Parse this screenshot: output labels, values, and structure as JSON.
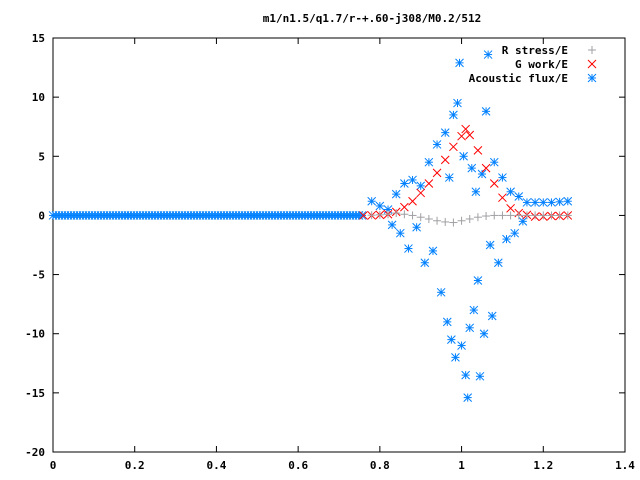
{
  "chart_data": {
    "type": "scatter",
    "title": "m1/n1.5/q1.7/r-+.60-j308/M0.2/512",
    "xlabel": "",
    "ylabel": "",
    "xlim": [
      0,
      1.4
    ],
    "ylim": [
      -20,
      15
    ],
    "x_ticks": [
      "0",
      "0.2",
      "0.4",
      "0.6",
      "0.8",
      "1",
      "1.2",
      "1.4"
    ],
    "y_ticks": [
      "15",
      "10",
      "5",
      "0",
      "-5",
      "-10",
      "-15",
      "-20"
    ],
    "grid": false,
    "legend_position": "top-right",
    "series": [
      {
        "name": "R stress/E",
        "marker": "+",
        "color": "#a0a0a4",
        "points": [
          [
            0.78,
            0.02
          ],
          [
            0.8,
            0.05
          ],
          [
            0.82,
            0.1
          ],
          [
            0.84,
            0.2
          ],
          [
            0.86,
            0.1
          ],
          [
            0.88,
            0.0
          ],
          [
            0.9,
            -0.15
          ],
          [
            0.92,
            -0.3
          ],
          [
            0.94,
            -0.45
          ],
          [
            0.96,
            -0.55
          ],
          [
            0.98,
            -0.6
          ],
          [
            1.0,
            -0.45
          ],
          [
            1.02,
            -0.3
          ],
          [
            1.04,
            -0.15
          ],
          [
            1.06,
            -0.05
          ],
          [
            1.08,
            0.0
          ],
          [
            1.1,
            0.0
          ],
          [
            1.12,
            0.0
          ],
          [
            1.14,
            0.0
          ],
          [
            1.16,
            0.0
          ],
          [
            1.18,
            0.0
          ],
          [
            1.2,
            0.0
          ],
          [
            1.22,
            0.0
          ],
          [
            1.24,
            0.0
          ],
          [
            1.26,
            0.0
          ]
        ]
      },
      {
        "name": "G work/E",
        "marker": "x",
        "color": "#ff0000",
        "points": [
          [
            0.76,
            0.0
          ],
          [
            0.78,
            0.0
          ],
          [
            0.8,
            0.05
          ],
          [
            0.82,
            0.1
          ],
          [
            0.84,
            0.3
          ],
          [
            0.86,
            0.7
          ],
          [
            0.88,
            1.2
          ],
          [
            0.9,
            1.9
          ],
          [
            0.92,
            2.7
          ],
          [
            0.94,
            3.6
          ],
          [
            0.96,
            4.7
          ],
          [
            0.98,
            5.8
          ],
          [
            1.0,
            6.7
          ],
          [
            1.01,
            7.3
          ],
          [
            1.02,
            6.8
          ],
          [
            1.04,
            5.5
          ],
          [
            1.06,
            4.0
          ],
          [
            1.08,
            2.7
          ],
          [
            1.1,
            1.5
          ],
          [
            1.12,
            0.6
          ],
          [
            1.14,
            0.2
          ],
          [
            1.16,
            0.05
          ],
          [
            1.18,
            -0.1
          ],
          [
            1.2,
            -0.1
          ],
          [
            1.22,
            -0.05
          ],
          [
            1.24,
            -0.05
          ],
          [
            1.26,
            0.0
          ]
        ]
      },
      {
        "name": "Acoustic flux/E",
        "marker": "*",
        "color": "#0080ff",
        "points": [
          [
            0.78,
            1.2
          ],
          [
            0.8,
            0.8
          ],
          [
            0.82,
            0.5
          ],
          [
            0.83,
            -0.8
          ],
          [
            0.84,
            1.8
          ],
          [
            0.85,
            -1.5
          ],
          [
            0.86,
            2.7
          ],
          [
            0.87,
            -2.8
          ],
          [
            0.88,
            3.0
          ],
          [
            0.89,
            -1.0
          ],
          [
            0.9,
            2.5
          ],
          [
            0.91,
            -4.0
          ],
          [
            0.92,
            4.5
          ],
          [
            0.93,
            -3.0
          ],
          [
            0.94,
            6.0
          ],
          [
            0.95,
            -6.5
          ],
          [
            0.96,
            7.0
          ],
          [
            0.965,
            -9.0
          ],
          [
            0.97,
            3.2
          ],
          [
            0.975,
            -10.5
          ],
          [
            0.98,
            8.5
          ],
          [
            0.985,
            -12.0
          ],
          [
            0.99,
            9.5
          ],
          [
            0.995,
            12.9
          ],
          [
            1.0,
            -11.0
          ],
          [
            1.005,
            5.0
          ],
          [
            1.01,
            -13.5
          ],
          [
            1.015,
            -15.4
          ],
          [
            1.02,
            -9.5
          ],
          [
            1.025,
            4.0
          ],
          [
            1.03,
            -8.0
          ],
          [
            1.035,
            2.0
          ],
          [
            1.04,
            -5.5
          ],
          [
            1.045,
            -13.6
          ],
          [
            1.05,
            3.5
          ],
          [
            1.055,
            -10.0
          ],
          [
            1.06,
            8.8
          ],
          [
            1.065,
            13.6
          ],
          [
            1.07,
            -2.5
          ],
          [
            1.075,
            -8.5
          ],
          [
            1.08,
            4.5
          ],
          [
            1.09,
            -4.0
          ],
          [
            1.1,
            3.2
          ],
          [
            1.11,
            -2.0
          ],
          [
            1.12,
            2.0
          ],
          [
            1.13,
            -1.5
          ],
          [
            1.14,
            1.6
          ],
          [
            1.15,
            -0.5
          ],
          [
            1.16,
            1.1
          ],
          [
            1.18,
            1.1
          ],
          [
            1.2,
            1.1
          ],
          [
            1.22,
            1.1
          ],
          [
            1.24,
            1.15
          ],
          [
            1.26,
            1.2
          ]
        ]
      }
    ],
    "baseline_series_index": 2,
    "baseline": {
      "x_from": 0.0,
      "x_to": 0.76,
      "y": 0.0
    }
  }
}
